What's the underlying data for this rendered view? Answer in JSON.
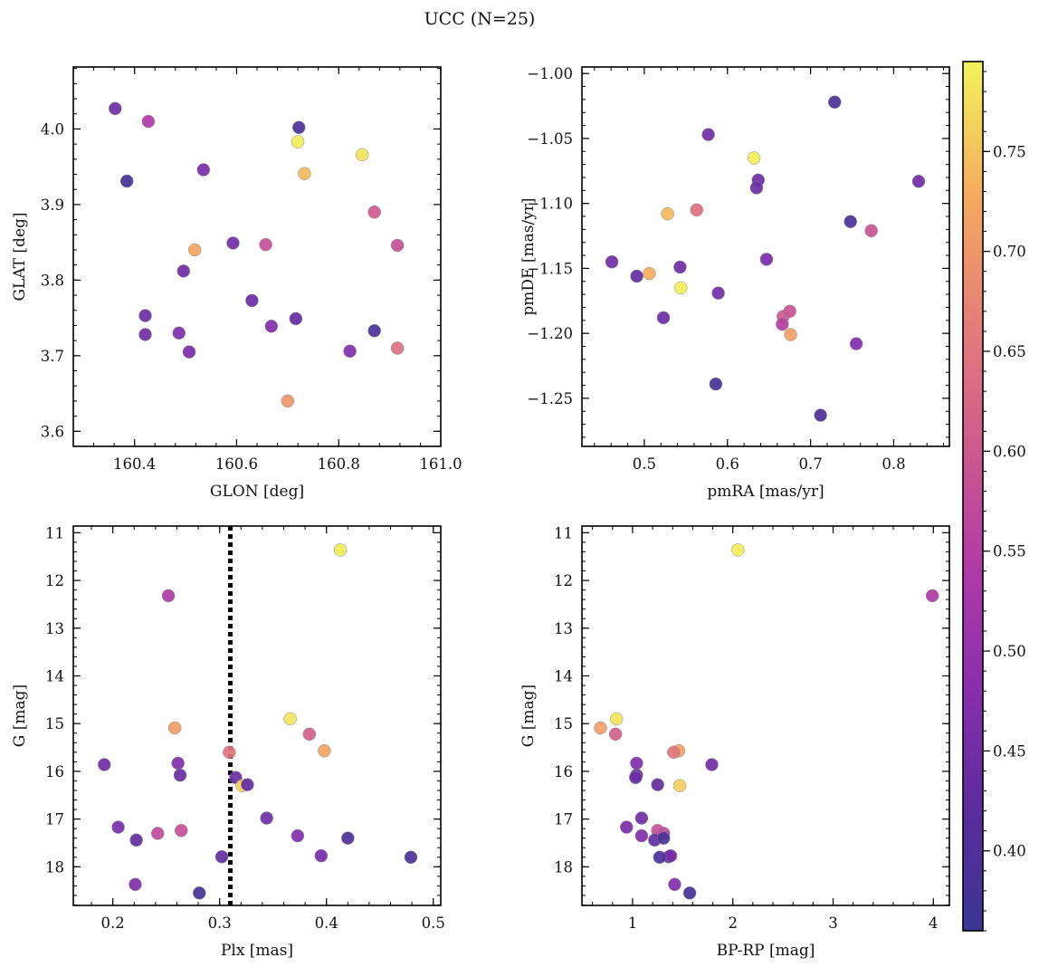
{
  "figure": {
    "suptitle": "UCC (N=25)"
  },
  "colorbar": {
    "colormap": "plasma",
    "vmin": 0.36,
    "vmax": 0.795,
    "ticks": [
      0.4,
      0.45,
      0.5,
      0.55,
      0.6,
      0.65,
      0.7,
      0.75
    ],
    "tick_labels": [
      "0.40",
      "0.45",
      "0.50",
      "0.55",
      "0.60",
      "0.65",
      "0.70",
      "0.75"
    ]
  },
  "chart_data": [
    {
      "type": "scatter",
      "id": "glon_glat",
      "title": "",
      "xlabel": "GLON [deg]",
      "ylabel": "GLAT [deg]",
      "xlim": [
        160.28,
        161.0
      ],
      "ylim": [
        3.58,
        4.082
      ],
      "xticks": [
        160.4,
        160.6,
        160.8,
        161.0
      ],
      "xtick_labels": [
        "160.4",
        "160.6",
        "160.8",
        "161.0"
      ],
      "yticks": [
        3.6,
        3.7,
        3.8,
        3.9,
        4.0
      ],
      "ytick_labels": [
        "3.6",
        "3.7",
        "3.8",
        "3.9",
        "4.0"
      ],
      "y_inverted": false,
      "points": [
        {
          "x": 160.362,
          "y": 4.027,
          "c": 0.45
        },
        {
          "x": 160.427,
          "y": 4.01,
          "c": 0.54
        },
        {
          "x": 160.385,
          "y": 3.931,
          "c": 0.38
        },
        {
          "x": 160.535,
          "y": 3.946,
          "c": 0.46
        },
        {
          "x": 160.722,
          "y": 4.002,
          "c": 0.39
        },
        {
          "x": 160.72,
          "y": 3.983,
          "c": 0.79
        },
        {
          "x": 160.733,
          "y": 3.941,
          "c": 0.74
        },
        {
          "x": 160.846,
          "y": 3.966,
          "c": 0.78
        },
        {
          "x": 160.87,
          "y": 3.89,
          "c": 0.6
        },
        {
          "x": 160.518,
          "y": 3.84,
          "c": 0.72
        },
        {
          "x": 160.593,
          "y": 3.849,
          "c": 0.45
        },
        {
          "x": 160.657,
          "y": 3.847,
          "c": 0.58
        },
        {
          "x": 160.915,
          "y": 3.846,
          "c": 0.58
        },
        {
          "x": 160.496,
          "y": 3.812,
          "c": 0.45
        },
        {
          "x": 160.63,
          "y": 3.773,
          "c": 0.44
        },
        {
          "x": 160.421,
          "y": 3.753,
          "c": 0.44
        },
        {
          "x": 160.668,
          "y": 3.739,
          "c": 0.47
        },
        {
          "x": 160.716,
          "y": 3.749,
          "c": 0.43
        },
        {
          "x": 160.421,
          "y": 3.728,
          "c": 0.45
        },
        {
          "x": 160.487,
          "y": 3.73,
          "c": 0.47
        },
        {
          "x": 160.87,
          "y": 3.733,
          "c": 0.39
        },
        {
          "x": 160.507,
          "y": 3.705,
          "c": 0.46
        },
        {
          "x": 160.822,
          "y": 3.706,
          "c": 0.47
        },
        {
          "x": 160.915,
          "y": 3.71,
          "c": 0.64
        },
        {
          "x": 160.7,
          "y": 3.64,
          "c": 0.7
        }
      ]
    },
    {
      "type": "scatter",
      "id": "pmra_pmde",
      "title": "",
      "xlabel": "pmRA [mas/yr]",
      "ylabel": "pmDE [mas/yr]",
      "xlim": [
        0.425,
        0.867
      ],
      "ylim": [
        -1.287,
        -0.995
      ],
      "xticks": [
        0.5,
        0.6,
        0.7,
        0.8
      ],
      "xtick_labels": [
        "0.5",
        "0.6",
        "0.7",
        "0.8"
      ],
      "yticks": [
        -1.25,
        -1.2,
        -1.15,
        -1.1,
        -1.05,
        -1.0
      ],
      "ytick_labels": [
        "−1.25",
        "−1.20",
        "−1.15",
        "−1.10",
        "−1.05",
        "−1.00"
      ],
      "y_inverted": false,
      "points": [
        {
          "x": 0.729,
          "y": -1.022,
          "c": 0.39
        },
        {
          "x": 0.577,
          "y": -1.047,
          "c": 0.45
        },
        {
          "x": 0.632,
          "y": -1.065,
          "c": 0.79
        },
        {
          "x": 0.637,
          "y": -1.082,
          "c": 0.44
        },
        {
          "x": 0.635,
          "y": -1.088,
          "c": 0.44
        },
        {
          "x": 0.83,
          "y": -1.083,
          "c": 0.45
        },
        {
          "x": 0.528,
          "y": -1.108,
          "c": 0.74
        },
        {
          "x": 0.563,
          "y": -1.105,
          "c": 0.64
        },
        {
          "x": 0.748,
          "y": -1.114,
          "c": 0.39
        },
        {
          "x": 0.773,
          "y": -1.121,
          "c": 0.59
        },
        {
          "x": 0.461,
          "y": -1.145,
          "c": 0.45
        },
        {
          "x": 0.491,
          "y": -1.156,
          "c": 0.43
        },
        {
          "x": 0.506,
          "y": -1.154,
          "c": 0.73
        },
        {
          "x": 0.543,
          "y": -1.149,
          "c": 0.45
        },
        {
          "x": 0.647,
          "y": -1.143,
          "c": 0.46
        },
        {
          "x": 0.544,
          "y": -1.165,
          "c": 0.79
        },
        {
          "x": 0.589,
          "y": -1.169,
          "c": 0.45
        },
        {
          "x": 0.523,
          "y": -1.188,
          "c": 0.44
        },
        {
          "x": 0.667,
          "y": -1.187,
          "c": 0.6
        },
        {
          "x": 0.675,
          "y": -1.183,
          "c": 0.59
        },
        {
          "x": 0.666,
          "y": -1.193,
          "c": 0.55
        },
        {
          "x": 0.676,
          "y": -1.201,
          "c": 0.71
        },
        {
          "x": 0.755,
          "y": -1.208,
          "c": 0.47
        },
        {
          "x": 0.586,
          "y": -1.239,
          "c": 0.38
        },
        {
          "x": 0.712,
          "y": -1.263,
          "c": 0.39
        }
      ]
    },
    {
      "type": "scatter",
      "id": "plx_g",
      "title": "",
      "xlabel": "Plx [mas]",
      "ylabel": "G [mag]",
      "xlim": [
        0.163,
        0.507
      ],
      "ylim": [
        10.86,
        18.81
      ],
      "xticks": [
        0.2,
        0.3,
        0.4,
        0.5
      ],
      "xtick_labels": [
        "0.2",
        "0.3",
        "0.4",
        "0.5"
      ],
      "yticks": [
        11,
        12,
        13,
        14,
        15,
        16,
        17,
        18
      ],
      "ytick_labels": [
        "11",
        "12",
        "13",
        "14",
        "15",
        "16",
        "17",
        "18"
      ],
      "y_inverted": true,
      "vline_x": 0.31,
      "points": [
        {
          "x": 0.413,
          "y": 11.36,
          "c": 0.79
        },
        {
          "x": 0.252,
          "y": 12.32,
          "c": 0.54
        },
        {
          "x": 0.366,
          "y": 14.9,
          "c": 0.78
        },
        {
          "x": 0.258,
          "y": 15.09,
          "c": 0.71
        },
        {
          "x": 0.384,
          "y": 15.22,
          "c": 0.61
        },
        {
          "x": 0.398,
          "y": 15.57,
          "c": 0.72
        },
        {
          "x": 0.309,
          "y": 15.6,
          "c": 0.65
        },
        {
          "x": 0.192,
          "y": 15.86,
          "c": 0.45
        },
        {
          "x": 0.261,
          "y": 15.83,
          "c": 0.47
        },
        {
          "x": 0.263,
          "y": 16.08,
          "c": 0.44
        },
        {
          "x": 0.315,
          "y": 16.13,
          "c": 0.44
        },
        {
          "x": 0.321,
          "y": 16.3,
          "c": 0.76
        },
        {
          "x": 0.326,
          "y": 16.28,
          "c": 0.43
        },
        {
          "x": 0.344,
          "y": 16.98,
          "c": 0.45
        },
        {
          "x": 0.205,
          "y": 17.17,
          "c": 0.46
        },
        {
          "x": 0.242,
          "y": 17.3,
          "c": 0.57
        },
        {
          "x": 0.264,
          "y": 17.24,
          "c": 0.58
        },
        {
          "x": 0.373,
          "y": 17.35,
          "c": 0.47
        },
        {
          "x": 0.222,
          "y": 17.44,
          "c": 0.43
        },
        {
          "x": 0.42,
          "y": 17.4,
          "c": 0.39
        },
        {
          "x": 0.302,
          "y": 17.79,
          "c": 0.43
        },
        {
          "x": 0.395,
          "y": 17.77,
          "c": 0.46
        },
        {
          "x": 0.479,
          "y": 17.8,
          "c": 0.39
        },
        {
          "x": 0.221,
          "y": 18.37,
          "c": 0.47
        },
        {
          "x": 0.281,
          "y": 18.55,
          "c": 0.38
        }
      ]
    },
    {
      "type": "scatter",
      "id": "bprp_g",
      "title": "",
      "xlabel": "BP-RP [mag]",
      "ylabel": "G [mag]",
      "xlim": [
        0.495,
        4.16
      ],
      "ylim": [
        10.86,
        18.81
      ],
      "xticks": [
        1,
        2,
        3,
        4
      ],
      "xtick_labels": [
        "1",
        "2",
        "3",
        "4"
      ],
      "yticks": [
        11,
        12,
        13,
        14,
        15,
        16,
        17,
        18
      ],
      "ytick_labels": [
        "11",
        "12",
        "13",
        "14",
        "15",
        "16",
        "17",
        "18"
      ],
      "y_inverted": true,
      "points": [
        {
          "x": 2.05,
          "y": 11.36,
          "c": 0.79
        },
        {
          "x": 3.99,
          "y": 12.32,
          "c": 0.54
        },
        {
          "x": 0.84,
          "y": 14.9,
          "c": 0.78
        },
        {
          "x": 0.68,
          "y": 15.09,
          "c": 0.71
        },
        {
          "x": 0.83,
          "y": 15.22,
          "c": 0.61
        },
        {
          "x": 1.46,
          "y": 15.57,
          "c": 0.72
        },
        {
          "x": 1.41,
          "y": 15.6,
          "c": 0.65
        },
        {
          "x": 1.79,
          "y": 15.86,
          "c": 0.45
        },
        {
          "x": 1.04,
          "y": 15.83,
          "c": 0.47
        },
        {
          "x": 1.04,
          "y": 16.08,
          "c": 0.44
        },
        {
          "x": 1.03,
          "y": 16.13,
          "c": 0.44
        },
        {
          "x": 1.47,
          "y": 16.3,
          "c": 0.76
        },
        {
          "x": 1.25,
          "y": 16.28,
          "c": 0.43
        },
        {
          "x": 1.09,
          "y": 16.98,
          "c": 0.45
        },
        {
          "x": 0.94,
          "y": 17.17,
          "c": 0.46
        },
        {
          "x": 1.31,
          "y": 17.3,
          "c": 0.57
        },
        {
          "x": 1.25,
          "y": 17.24,
          "c": 0.58
        },
        {
          "x": 1.09,
          "y": 17.35,
          "c": 0.47
        },
        {
          "x": 1.22,
          "y": 17.44,
          "c": 0.43
        },
        {
          "x": 1.31,
          "y": 17.4,
          "c": 0.39
        },
        {
          "x": 1.36,
          "y": 17.79,
          "c": 0.43
        },
        {
          "x": 1.38,
          "y": 17.77,
          "c": 0.46
        },
        {
          "x": 1.27,
          "y": 17.8,
          "c": 0.39
        },
        {
          "x": 1.42,
          "y": 18.37,
          "c": 0.47
        },
        {
          "x": 1.57,
          "y": 18.55,
          "c": 0.38
        }
      ]
    }
  ]
}
